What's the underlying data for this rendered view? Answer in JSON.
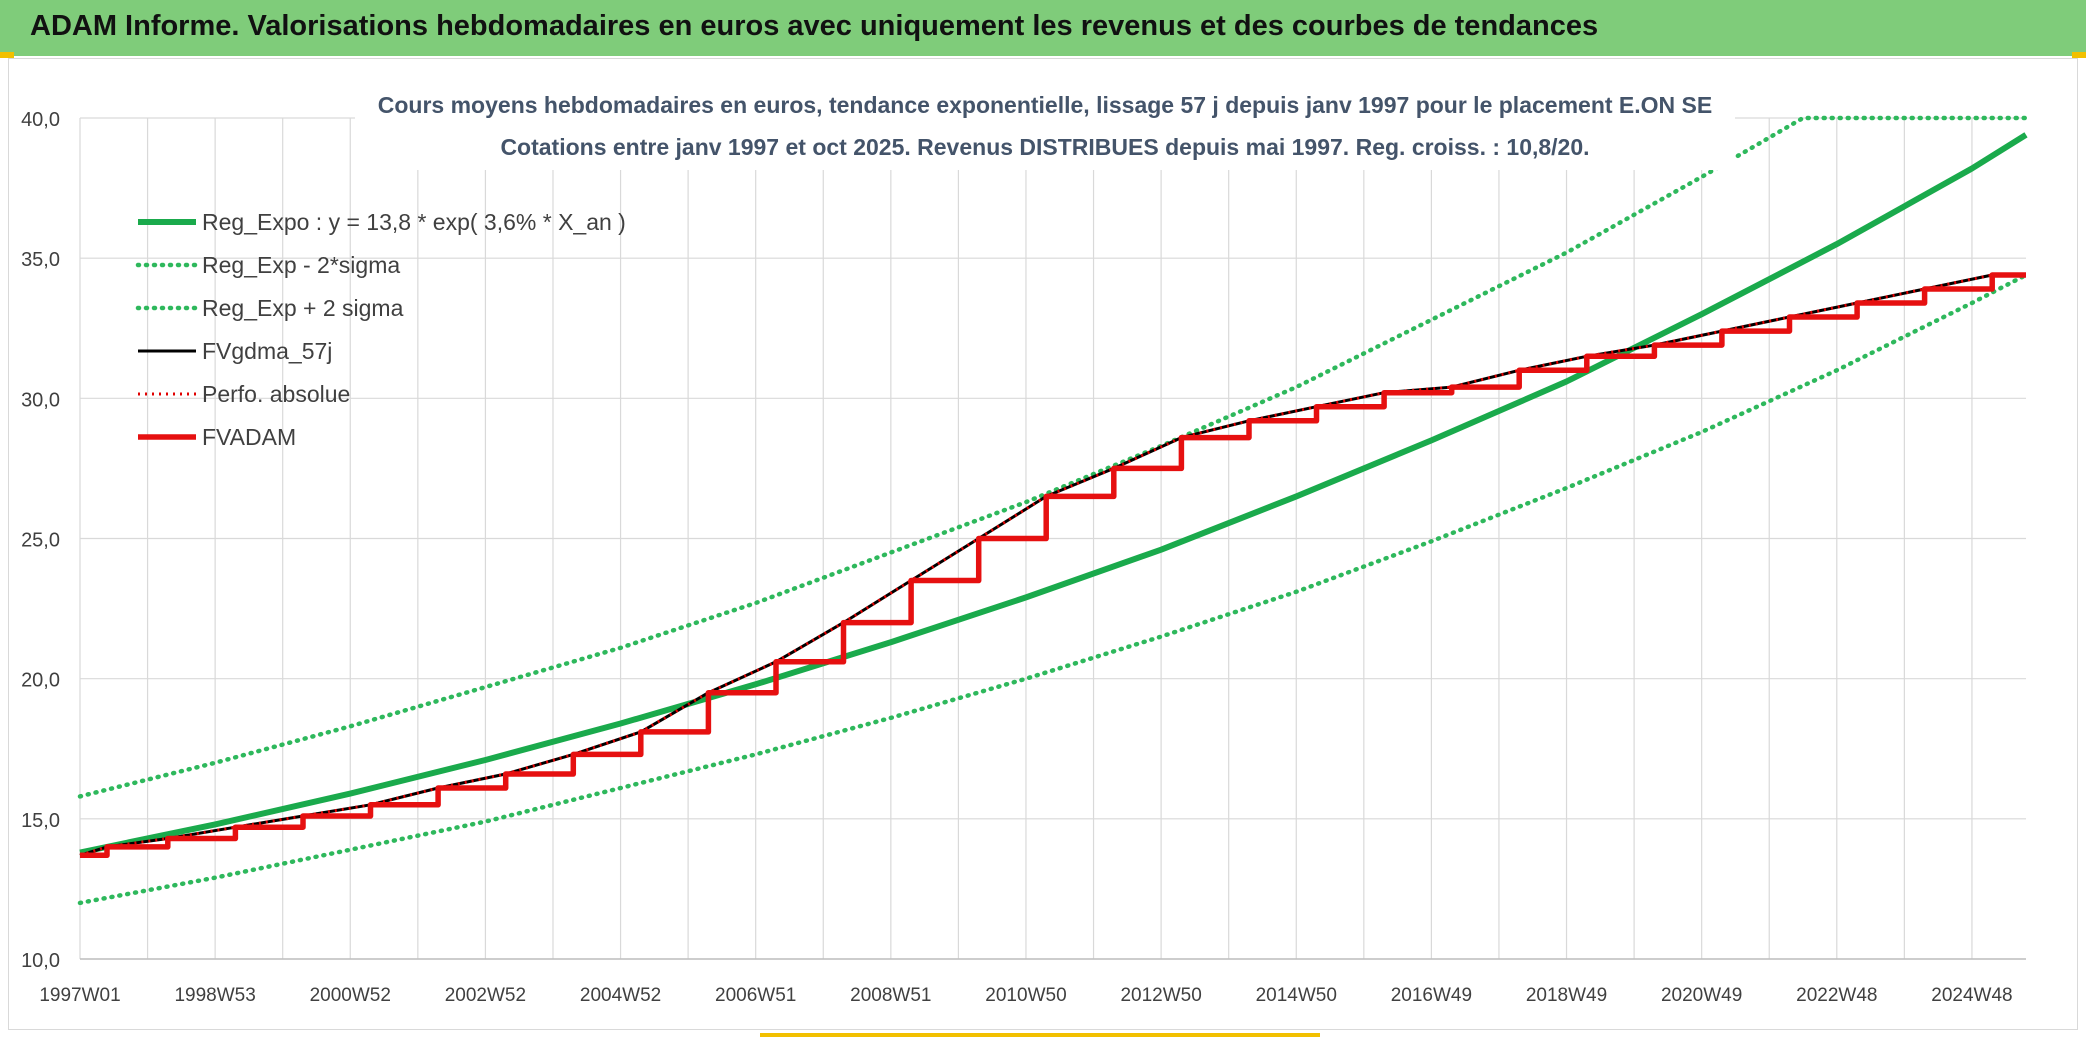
{
  "banner": {
    "title": "ADAM Informe. Valorisations hebdomadaires en euros avec uniquement les revenus et des courbes de tendances"
  },
  "colors": {
    "banner_bg": "#7fcc7a",
    "trend": "#1aaa4c",
    "trend_band": "#2eb85c",
    "fv": "#000000",
    "perf": "#e00000",
    "fvadam": "#e61010"
  },
  "chart_data": {
    "type": "line",
    "title": "Cours moyens hebdomadaires en euros, tendance exponentielle, lissage 57 j depuis janv 1997 pour le placement E.ON SE",
    "subtitle": "Cotations entre janv 1997 et oct 2025. Revenus DISTRIBUES depuis mai 1997. Reg. croiss. : 10,8/20.",
    "xlabel": "",
    "ylabel": "",
    "x_ticks": [
      "1997W01",
      "1998W53",
      "2000W52",
      "2002W52",
      "2004W52",
      "2006W51",
      "2008W51",
      "2010W50",
      "2012W50",
      "2014W50",
      "2016W49",
      "2018W49",
      "2020W49",
      "2022W48",
      "2024W48"
    ],
    "x_range": [
      1997.0,
      2025.8
    ],
    "ylim": [
      10,
      40
    ],
    "y_ticks": [
      "10,0",
      "15,0",
      "20,0",
      "25,0",
      "30,0",
      "35,0",
      "40,0"
    ],
    "grid": true,
    "legend_position": "top-left",
    "series": [
      {
        "name": "Reg_Expo : y = 13,8 * exp( 3,6% *  X_an )",
        "style": "solid",
        "x": [
          1997,
          1999,
          2001,
          2003,
          2005,
          2007,
          2009,
          2011,
          2013,
          2015,
          2017,
          2019,
          2021,
          2023,
          2025,
          2025.8
        ],
        "values": [
          13.8,
          14.8,
          15.9,
          17.1,
          18.4,
          19.8,
          21.3,
          22.9,
          24.6,
          26.5,
          28.5,
          30.6,
          33.0,
          35.5,
          38.2,
          39.4
        ]
      },
      {
        "name": "Reg_Exp - 2*sigma",
        "style": "dotted",
        "x": [
          1997,
          1999,
          2001,
          2003,
          2005,
          2007,
          2009,
          2011,
          2013,
          2015,
          2017,
          2019,
          2021,
          2023,
          2025,
          2025.8
        ],
        "values": [
          12.0,
          12.9,
          13.9,
          14.9,
          16.1,
          17.3,
          18.6,
          20.0,
          21.5,
          23.1,
          24.9,
          26.8,
          28.8,
          31.0,
          33.4,
          34.4
        ]
      },
      {
        "name": "Reg_Exp + 2 sigma",
        "style": "dotted",
        "x": [
          1997,
          1999,
          2001,
          2003,
          2005,
          2007,
          2009,
          2011,
          2013,
          2015,
          2017,
          2019,
          2021,
          2022.5,
          2025.8
        ],
        "values": [
          15.8,
          17.0,
          18.3,
          19.7,
          21.1,
          22.7,
          24.5,
          26.3,
          28.3,
          30.4,
          32.8,
          35.2,
          37.9,
          40.0,
          40.0
        ]
      },
      {
        "name": "FVgdma_57j",
        "style": "solid-thin",
        "x": [
          1997.0,
          1997.4,
          1998.3,
          1999.3,
          2000.3,
          2001.3,
          2002.3,
          2003.3,
          2004.3,
          2005.3,
          2006.3,
          2007.3,
          2008.3,
          2009.3,
          2010.3,
          2011.3,
          2012.3,
          2013.3,
          2014.3,
          2015.3,
          2016.3,
          2017.3,
          2018.3,
          2019.3,
          2020.3,
          2021.3,
          2022.3,
          2023.3,
          2024.3,
          2025.3,
          2025.8
        ],
        "values": [
          13.7,
          14.0,
          14.3,
          14.7,
          15.1,
          15.5,
          16.1,
          16.6,
          17.3,
          18.1,
          19.5,
          20.6,
          22.0,
          23.5,
          25.0,
          26.5,
          27.5,
          28.6,
          29.2,
          29.7,
          30.2,
          30.4,
          31.0,
          31.5,
          31.9,
          32.4,
          32.9,
          33.4,
          33.9,
          34.4,
          34.4
        ]
      },
      {
        "name": "Perfo. absolue",
        "style": "dotted-red",
        "x": [
          1997.0,
          1997.4,
          1998.3,
          1999.3,
          2000.3,
          2001.3,
          2002.3,
          2003.3,
          2004.3,
          2005.3,
          2006.3,
          2007.3,
          2008.3,
          2009.3,
          2010.3,
          2011.3,
          2012.3,
          2013.3,
          2014.3,
          2015.3,
          2016.3,
          2017.3,
          2018.3,
          2019.3,
          2020.3,
          2021.3,
          2022.3,
          2023.3,
          2024.3,
          2025.3,
          2025.8
        ],
        "values": [
          13.7,
          14.0,
          14.3,
          14.7,
          15.1,
          15.5,
          16.1,
          16.6,
          17.3,
          18.1,
          19.5,
          20.6,
          22.0,
          23.5,
          25.0,
          26.5,
          27.5,
          28.6,
          29.2,
          29.7,
          30.2,
          30.4,
          31.0,
          31.5,
          31.9,
          32.4,
          32.9,
          33.4,
          33.9,
          34.4,
          34.4
        ]
      },
      {
        "name": "FVADAM",
        "style": "step",
        "x": [
          1997.0,
          1997.4,
          1998.3,
          1999.3,
          2000.3,
          2001.3,
          2002.3,
          2003.3,
          2004.3,
          2005.3,
          2006.3,
          2007.3,
          2008.3,
          2009.3,
          2010.3,
          2011.3,
          2012.3,
          2013.3,
          2014.3,
          2015.3,
          2016.3,
          2017.3,
          2018.3,
          2019.3,
          2020.3,
          2021.3,
          2022.3,
          2023.3,
          2024.3,
          2025.3,
          2025.8
        ],
        "values": [
          13.7,
          14.0,
          14.3,
          14.7,
          15.1,
          15.5,
          16.1,
          16.6,
          17.3,
          18.1,
          19.5,
          20.6,
          22.0,
          23.5,
          25.0,
          26.5,
          27.5,
          28.6,
          29.2,
          29.7,
          30.2,
          30.4,
          31.0,
          31.5,
          31.9,
          32.4,
          32.9,
          33.4,
          33.9,
          34.4,
          34.4
        ]
      }
    ]
  }
}
